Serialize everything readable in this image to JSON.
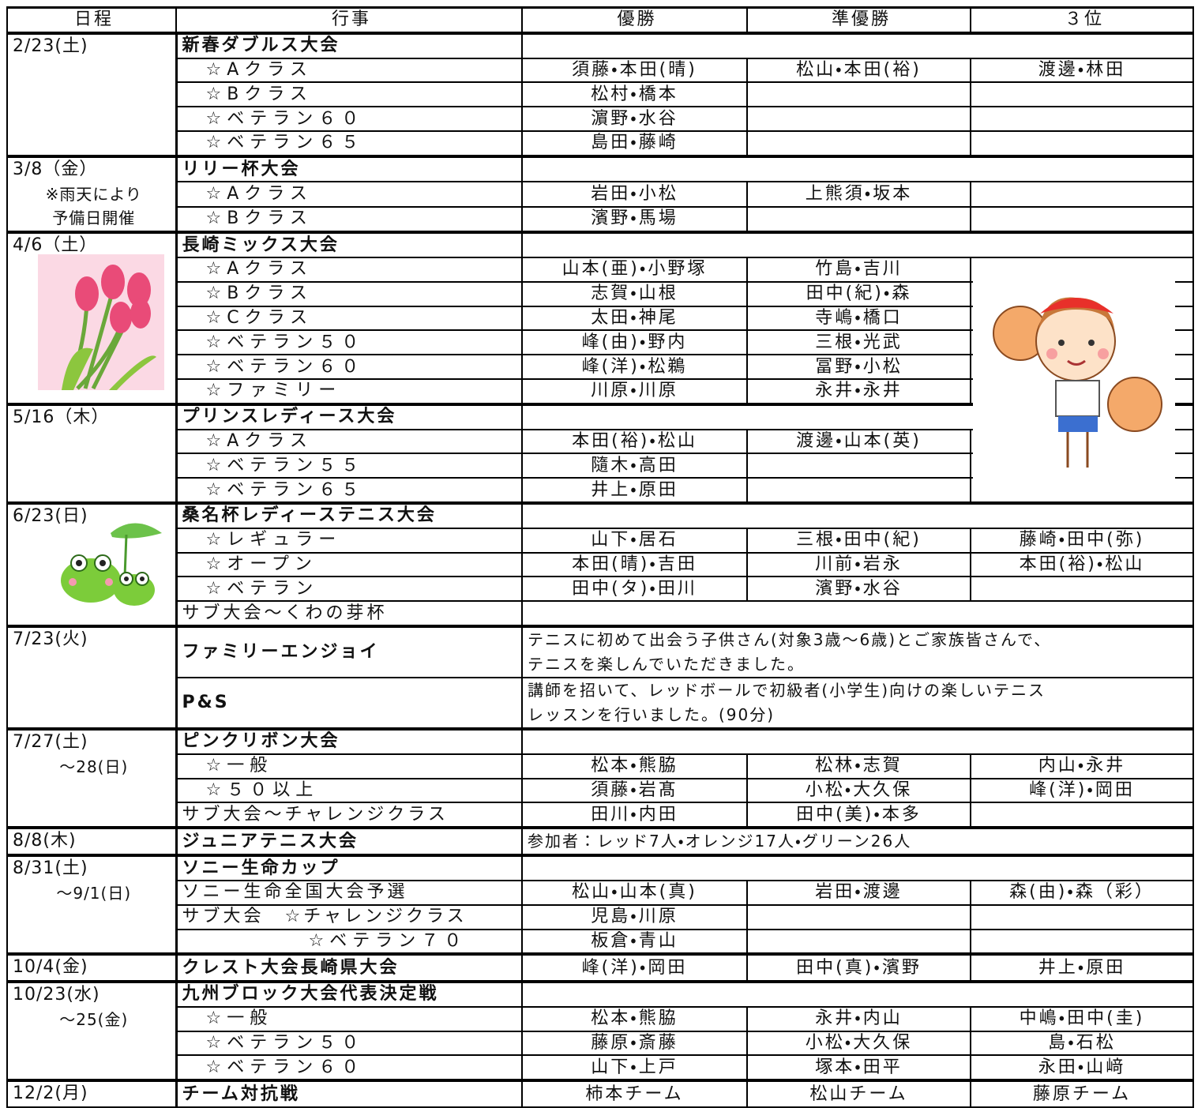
{
  "header": [
    "日程",
    "行事",
    "優勝",
    "準優勝",
    "３位"
  ],
  "groups": [
    {
      "date": [
        "2/23(土)"
      ],
      "entries": [
        {
          "tournament": "新春ダブルス大会"
        },
        {
          "class": "☆Aクラス",
          "results": [
            "須藤・本田(晴)",
            "松山・本田(裕)",
            "渡邊・林田"
          ]
        },
        {
          "class": "☆Bクラス",
          "results": [
            "松村・橋本"
          ]
        },
        {
          "class": "☆ベテラン６０",
          "results": [
            "濵野・水谷"
          ]
        },
        {
          "class": "☆ベテラン６５",
          "results": [
            "島田・藤崎"
          ]
        }
      ]
    },
    {
      "date": [
        "3/8（金）",
        "※雨天により",
        "予備日開催"
      ],
      "entries": [
        {
          "tournament": "リリー杯大会"
        },
        {
          "class": "☆Aクラス",
          "results": [
            "岩田・小松",
            "上熊須・坂本"
          ]
        },
        {
          "class": "☆Bクラス",
          "results": [
            "濱野・馬場"
          ]
        }
      ]
    },
    {
      "date": [
        "4/6（土）"
      ],
      "entries": [
        {
          "tournament": "長崎ミックス大会"
        },
        {
          "class": "☆Aクラス",
          "results": [
            "山本(亜)・小野塚",
            "竹島・吉川"
          ]
        },
        {
          "class": "☆Bクラス",
          "results": [
            "志賀・山根",
            "田中(紀)・森"
          ]
        },
        {
          "class": "☆Cクラス",
          "results": [
            "太田・神尾",
            "寺嶋・橋口"
          ]
        },
        {
          "class": "☆ベテラン５０",
          "results": [
            "峰(由)・野内",
            "三根・光武"
          ]
        },
        {
          "class": "☆ベテラン６０",
          "results": [
            "峰(洋)・松鵜",
            "冨野・小松"
          ]
        },
        {
          "class": "☆ファミリー",
          "results": [
            "川原・川原",
            "永井・永井"
          ]
        }
      ]
    },
    {
      "date": [
        "5/16（木）"
      ],
      "entries": [
        {
          "tournament": "プリンスレディース大会"
        },
        {
          "class": "☆Aクラス",
          "results": [
            "本田(裕)・松山",
            "渡邊・山本(英)"
          ]
        },
        {
          "class": "☆ベテラン５５",
          "results": [
            "隨木・高田"
          ]
        },
        {
          "class": "☆ベテラン６５",
          "results": [
            "井上・原田"
          ]
        }
      ]
    },
    {
      "date": [
        "6/23(日)"
      ],
      "entries": [
        {
          "tournament": "桑名杯レディーステニス大会"
        },
        {
          "class": "☆レギュラー",
          "results": [
            "山下・居石",
            "三根・田中(紀)",
            "藤崎・田中(弥)"
          ]
        },
        {
          "class": "☆オープン",
          "results": [
            "本田(晴)・吉田",
            "川前・岩永",
            "本田(裕)・松山"
          ]
        },
        {
          "class": "☆ベテラン",
          "results": [
            "田中(タ)・田川",
            "濱野・水谷"
          ]
        },
        {
          "event": "サブ大会～くわの芽杯"
        }
      ]
    },
    {
      "date": [
        "7/23(火)"
      ],
      "entries": [
        {
          "tournament": "ファミリーエンジョイ",
          "note": [
            "テニスに初めて出会う子供さん(対象3歳～6歳)とご家族皆さんで、",
            "テニスを楽しんでいただきました。"
          ]
        },
        {
          "tournament": "P&S",
          "note": [
            "講師を招いて、レッドボールで初級者(小学生)向けの楽しいテニス",
            "レッスンを行いました。(90分)"
          ]
        }
      ]
    },
    {
      "date": [
        "7/27(土)",
        "～28(日)"
      ],
      "entries": [
        {
          "tournament": "ピンクリボン大会"
        },
        {
          "class": "☆一般",
          "results": [
            "松本・熊脇",
            "松林・志賀",
            "内山・永井"
          ]
        },
        {
          "class": "☆５０以上",
          "results": [
            "須藤・岩髙",
            "小松・大久保",
            "峰(洋)・岡田"
          ]
        },
        {
          "event": "サブ大会～チャレンジクラス",
          "results": [
            "田川・内田",
            "田中(美)・本多"
          ]
        }
      ]
    },
    {
      "date": [
        "8/8(木)"
      ],
      "entries": [
        {
          "tournament": "ジュニアテニス大会",
          "note": [
            "参加者：レッド7人・オレンジ17人・グリーン26人"
          ]
        }
      ]
    },
    {
      "date": [
        "8/31(土)",
        "～9/1(日)"
      ],
      "entries": [
        {
          "tournament": "ソニー生命カップ"
        },
        {
          "event": "ソニー生命全国大会予選",
          "results": [
            "松山・山本(真)",
            "岩田・渡邊",
            "森(由)・森（彩）"
          ]
        },
        {
          "event": "サブ大会　☆チャレンジクラス",
          "results": [
            "児島・川原"
          ]
        },
        {
          "subclass": "☆ベテラン７０",
          "results": [
            "板倉・青山"
          ]
        }
      ]
    },
    {
      "date": [
        "10/4(金)"
      ],
      "entries": [
        {
          "tournament": "クレスト大会長崎県大会",
          "results": [
            "峰(洋)・岡田",
            "田中(真)・濱野",
            "井上・原田"
          ]
        }
      ]
    },
    {
      "date": [
        "10/23(水)",
        "～25(金)"
      ],
      "entries": [
        {
          "tournament": "九州ブロック大会代表決定戦"
        },
        {
          "class": "☆一般",
          "results": [
            "松本・熊脇",
            "永井・内山",
            "中嶋・田中(圭)"
          ]
        },
        {
          "class": "☆ベテラン５０",
          "results": [
            "藤原・斎藤",
            "小松・大久保",
            "島・石松"
          ]
        },
        {
          "class": "☆ベテラン６０",
          "results": [
            "山下・上戸",
            "塚本・田平",
            "永田・山﨑"
          ]
        }
      ]
    },
    {
      "date": [
        "12/2(月)"
      ],
      "entries": [
        {
          "tournament": "チーム対抗戦",
          "results": [
            "柿本チーム",
            "松山チーム",
            "藤原チーム"
          ]
        }
      ]
    }
  ]
}
